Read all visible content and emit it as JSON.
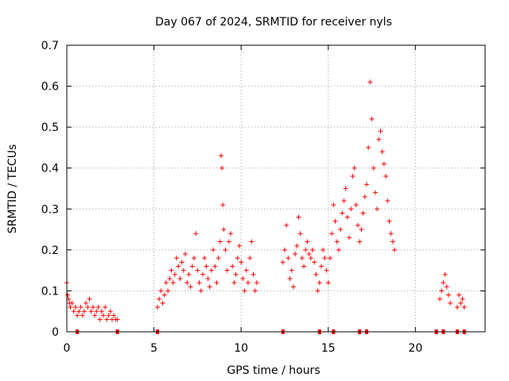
{
  "chart_data": {
    "type": "scatter",
    "title": "Day 067 of 2024, SRMTID for receiver nyls",
    "xlabel": "GPS time / hours",
    "ylabel": "SRMTID / TECUs",
    "xlim": [
      0,
      24
    ],
    "ylim": [
      0,
      0.7
    ],
    "xticks": [
      0,
      5,
      10,
      15,
      20
    ],
    "xtick_labels": [
      "0",
      "5",
      "10",
      "15",
      "20"
    ],
    "yticks": [
      0,
      0.1,
      0.2,
      0.3,
      0.4,
      0.5,
      0.6,
      0.7
    ],
    "ytick_labels": [
      "0",
      "0.1",
      "0.2",
      "0.3",
      "0.4",
      "0.5",
      "0.6",
      "0.7"
    ],
    "grid": true,
    "marker": "plus",
    "color": "#ff0000",
    "series": [
      {
        "name": "SRMTID",
        "x": [
          0.0,
          0.05,
          0.1,
          0.15,
          0.2,
          0.3,
          0.4,
          0.5,
          0.6,
          0.7,
          0.8,
          0.9,
          1.0,
          1.1,
          1.2,
          1.3,
          1.4,
          1.5,
          1.6,
          1.7,
          1.8,
          1.9,
          2.0,
          2.1,
          2.2,
          2.3,
          2.4,
          2.5,
          2.6,
          2.7,
          2.8,
          2.9,
          5.2,
          5.3,
          5.4,
          5.5,
          5.6,
          5.7,
          5.8,
          5.9,
          6.0,
          6.1,
          6.2,
          6.3,
          6.4,
          6.5,
          6.6,
          6.7,
          6.8,
          6.9,
          7.0,
          7.1,
          7.2,
          7.3,
          7.4,
          7.5,
          7.6,
          7.7,
          7.8,
          7.9,
          8.0,
          8.1,
          8.2,
          8.3,
          8.4,
          8.5,
          8.6,
          8.7,
          8.8,
          8.85,
          8.9,
          8.95,
          9.0,
          9.1,
          9.2,
          9.3,
          9.4,
          9.5,
          9.6,
          9.7,
          9.8,
          9.9,
          10.0,
          10.1,
          10.2,
          10.3,
          10.4,
          10.5,
          10.6,
          10.7,
          10.8,
          10.9,
          12.4,
          12.5,
          12.6,
          12.7,
          12.8,
          12.9,
          13.0,
          13.1,
          13.2,
          13.3,
          13.4,
          13.5,
          13.6,
          13.7,
          13.8,
          13.9,
          14.0,
          14.1,
          14.2,
          14.3,
          14.4,
          14.5,
          14.6,
          14.7,
          14.8,
          14.9,
          15.0,
          15.1,
          15.2,
          15.3,
          15.4,
          15.5,
          15.6,
          15.7,
          15.8,
          15.9,
          16.0,
          16.1,
          16.2,
          16.3,
          16.4,
          16.5,
          16.6,
          16.7,
          16.8,
          16.9,
          17.0,
          17.1,
          17.2,
          17.3,
          17.4,
          17.5,
          17.6,
          17.7,
          17.8,
          17.9,
          18.0,
          18.1,
          18.2,
          18.3,
          18.4,
          18.5,
          18.6,
          18.7,
          18.8,
          21.4,
          21.5,
          21.6,
          21.7,
          21.8,
          21.9,
          22.0,
          22.4,
          22.5,
          22.6,
          22.7,
          22.8
        ],
        "y": [
          0.12,
          0.09,
          0.08,
          0.07,
          0.06,
          0.07,
          0.05,
          0.06,
          0.04,
          0.05,
          0.06,
          0.04,
          0.05,
          0.07,
          0.06,
          0.08,
          0.05,
          0.06,
          0.04,
          0.05,
          0.06,
          0.03,
          0.05,
          0.04,
          0.06,
          0.03,
          0.04,
          0.05,
          0.03,
          0.04,
          0.03,
          0.03,
          0.06,
          0.08,
          0.1,
          0.07,
          0.09,
          0.12,
          0.1,
          0.13,
          0.15,
          0.12,
          0.14,
          0.18,
          0.16,
          0.13,
          0.17,
          0.15,
          0.19,
          0.12,
          0.14,
          0.11,
          0.16,
          0.18,
          0.24,
          0.15,
          0.12,
          0.1,
          0.14,
          0.18,
          0.16,
          0.13,
          0.11,
          0.15,
          0.2,
          0.16,
          0.12,
          0.18,
          0.22,
          0.43,
          0.4,
          0.31,
          0.25,
          0.2,
          0.15,
          0.22,
          0.24,
          0.16,
          0.12,
          0.14,
          0.18,
          0.21,
          0.17,
          0.13,
          0.1,
          0.15,
          0.12,
          0.18,
          0.22,
          0.14,
          0.1,
          0.12,
          0.17,
          0.2,
          0.26,
          0.18,
          0.13,
          0.15,
          0.11,
          0.19,
          0.21,
          0.28,
          0.24,
          0.18,
          0.16,
          0.2,
          0.22,
          0.19,
          0.18,
          0.2,
          0.17,
          0.14,
          0.1,
          0.12,
          0.16,
          0.2,
          0.18,
          0.15,
          0.12,
          0.18,
          0.24,
          0.31,
          0.27,
          0.22,
          0.2,
          0.25,
          0.29,
          0.32,
          0.35,
          0.28,
          0.23,
          0.3,
          0.38,
          0.4,
          0.31,
          0.26,
          0.22,
          0.25,
          0.29,
          0.33,
          0.36,
          0.45,
          0.61,
          0.52,
          0.4,
          0.34,
          0.3,
          0.47,
          0.49,
          0.44,
          0.41,
          0.38,
          0.32,
          0.27,
          0.24,
          0.22,
          0.2,
          0.08,
          0.1,
          0.12,
          0.14,
          0.11,
          0.09,
          0.07,
          0.06,
          0.09,
          0.07,
          0.08,
          0.06
        ]
      }
    ],
    "axis_markers_x": [
      0.6,
      2.9,
      5.2,
      12.4,
      14.5,
      15.3,
      16.8,
      17.2,
      21.2,
      21.6,
      22.4,
      22.8
    ]
  }
}
